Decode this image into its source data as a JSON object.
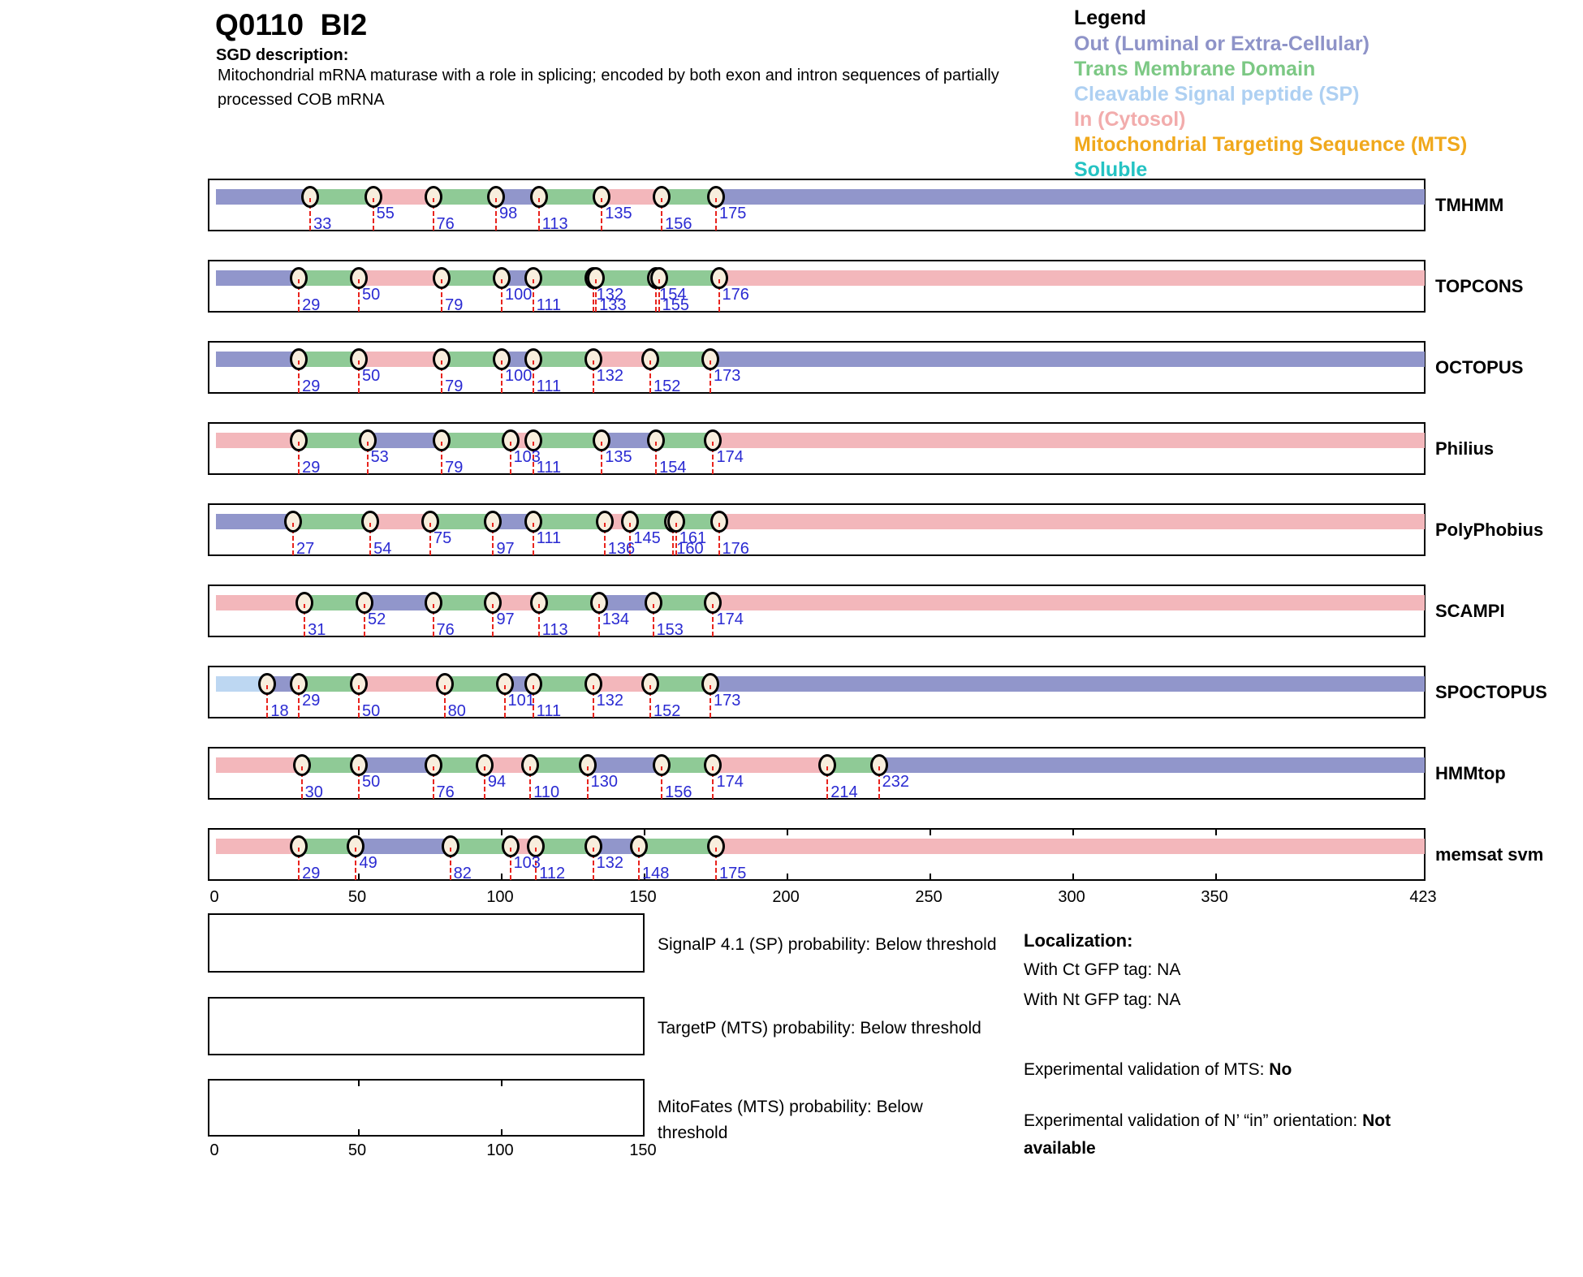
{
  "header": {
    "title": "Q0110  BI2",
    "sgd_label": "SGD description:",
    "description_lines": [
      "Mitochondrial mRNA maturase with a role in splicing; encoded by both exon and intron sequences of partially",
      "processed COB mRNA"
    ]
  },
  "legend": {
    "title": "Legend",
    "items": [
      {
        "id": "out",
        "label": "Out (Luminal or Extra-Cellular)",
        "color": "#8e93c8"
      },
      {
        "id": "tm",
        "label": "Trans Membrane Domain",
        "color": "#7cc884"
      },
      {
        "id": "sp",
        "label": "Cleavable Signal peptide (SP)",
        "color": "#aed0f2"
      },
      {
        "id": "in",
        "label": "In (Cytosol)",
        "color": "#f2acac"
      },
      {
        "id": "mts",
        "label": "Mitochondrial Targeting Sequence (MTS)",
        "color": "#f0a81c"
      },
      {
        "id": "soluble",
        "label": "Soluble",
        "color": "#25c3c3"
      }
    ]
  },
  "chart_data": {
    "type": "bar",
    "subtype": "protein-topology-tracks",
    "x_axis": {
      "min": 0,
      "max": 423,
      "ticks": [
        0,
        50,
        100,
        150,
        200,
        250,
        300,
        350,
        423
      ]
    },
    "segment_colors": {
      "out": "#9196cb",
      "tm": "#8fca96",
      "in": "#f3b7bb",
      "sp": "#bdd7f2"
    },
    "marker_colors": {
      "circle_fill": "#f8eedd",
      "circle_border": "#000000",
      "dashed_line": "#e8241e",
      "number": "#2a2ad2"
    },
    "tracks": [
      {
        "name": "TMHMM",
        "segments": [
          [
            0,
            33,
            "out"
          ],
          [
            33,
            55,
            "tm"
          ],
          [
            55,
            76,
            "in"
          ],
          [
            76,
            98,
            "tm"
          ],
          [
            98,
            113,
            "out"
          ],
          [
            113,
            135,
            "tm"
          ],
          [
            135,
            156,
            "in"
          ],
          [
            156,
            175,
            "tm"
          ],
          [
            175,
            423,
            "out"
          ]
        ],
        "boundaries": [
          [
            33,
            "low"
          ],
          [
            55,
            "high"
          ],
          [
            76,
            "low"
          ],
          [
            98,
            "high"
          ],
          [
            113,
            "low"
          ],
          [
            135,
            "high"
          ],
          [
            156,
            "low"
          ],
          [
            175,
            "high"
          ]
        ]
      },
      {
        "name": "TOPCONS",
        "segments": [
          [
            0,
            29,
            "out"
          ],
          [
            29,
            50,
            "tm"
          ],
          [
            50,
            79,
            "in"
          ],
          [
            79,
            100,
            "tm"
          ],
          [
            100,
            111,
            "out"
          ],
          [
            111,
            132,
            "tm"
          ],
          [
            132,
            133,
            "in"
          ],
          [
            133,
            154,
            "tm"
          ],
          [
            154,
            155,
            "out"
          ],
          [
            155,
            176,
            "tm"
          ],
          [
            176,
            423,
            "in"
          ]
        ],
        "boundaries": [
          [
            29,
            "low"
          ],
          [
            50,
            "high"
          ],
          [
            79,
            "low"
          ],
          [
            100,
            "high"
          ],
          [
            111,
            "low"
          ],
          [
            132,
            "high"
          ],
          [
            133,
            "low"
          ],
          [
            154,
            "high"
          ],
          [
            155,
            "low"
          ],
          [
            176,
            "high"
          ]
        ]
      },
      {
        "name": "OCTOPUS",
        "segments": [
          [
            0,
            29,
            "out"
          ],
          [
            29,
            50,
            "tm"
          ],
          [
            50,
            79,
            "in"
          ],
          [
            79,
            100,
            "tm"
          ],
          [
            100,
            111,
            "out"
          ],
          [
            111,
            132,
            "tm"
          ],
          [
            132,
            152,
            "in"
          ],
          [
            152,
            173,
            "tm"
          ],
          [
            173,
            423,
            "out"
          ]
        ],
        "boundaries": [
          [
            29,
            "low"
          ],
          [
            50,
            "high"
          ],
          [
            79,
            "low"
          ],
          [
            100,
            "high"
          ],
          [
            111,
            "low"
          ],
          [
            132,
            "high"
          ],
          [
            152,
            "low"
          ],
          [
            173,
            "high"
          ]
        ]
      },
      {
        "name": "Philius",
        "segments": [
          [
            0,
            29,
            "in"
          ],
          [
            29,
            53,
            "tm"
          ],
          [
            53,
            79,
            "out"
          ],
          [
            79,
            103,
            "tm"
          ],
          [
            103,
            111,
            "in"
          ],
          [
            111,
            135,
            "tm"
          ],
          [
            135,
            154,
            "out"
          ],
          [
            154,
            174,
            "tm"
          ],
          [
            174,
            423,
            "in"
          ]
        ],
        "boundaries": [
          [
            29,
            "low"
          ],
          [
            53,
            "high"
          ],
          [
            79,
            "low"
          ],
          [
            103,
            "high"
          ],
          [
            111,
            "low"
          ],
          [
            135,
            "high"
          ],
          [
            154,
            "low"
          ],
          [
            174,
            "high"
          ]
        ]
      },
      {
        "name": "PolyPhobius",
        "segments": [
          [
            0,
            27,
            "out"
          ],
          [
            27,
            54,
            "tm"
          ],
          [
            54,
            75,
            "in"
          ],
          [
            75,
            97,
            "tm"
          ],
          [
            97,
            111,
            "out"
          ],
          [
            111,
            136,
            "tm"
          ],
          [
            136,
            145,
            "in"
          ],
          [
            145,
            160,
            "tm"
          ],
          [
            160,
            161,
            "out"
          ],
          [
            161,
            176,
            "tm"
          ],
          [
            176,
            423,
            "in"
          ]
        ],
        "boundaries": [
          [
            27,
            "low"
          ],
          [
            54,
            "low"
          ],
          [
            75,
            "high"
          ],
          [
            97,
            "low"
          ],
          [
            111,
            "high"
          ],
          [
            136,
            "low"
          ],
          [
            145,
            "high"
          ],
          [
            160,
            "low"
          ],
          [
            161,
            "high"
          ],
          [
            176,
            "low"
          ]
        ]
      },
      {
        "name": "SCAMPI",
        "segments": [
          [
            0,
            31,
            "in"
          ],
          [
            31,
            52,
            "tm"
          ],
          [
            52,
            76,
            "out"
          ],
          [
            76,
            97,
            "tm"
          ],
          [
            97,
            113,
            "in"
          ],
          [
            113,
            134,
            "tm"
          ],
          [
            134,
            153,
            "out"
          ],
          [
            153,
            174,
            "tm"
          ],
          [
            174,
            423,
            "in"
          ]
        ],
        "boundaries": [
          [
            31,
            "low"
          ],
          [
            52,
            "high"
          ],
          [
            76,
            "low"
          ],
          [
            97,
            "high"
          ],
          [
            113,
            "low"
          ],
          [
            134,
            "high"
          ],
          [
            153,
            "low"
          ],
          [
            174,
            "high"
          ]
        ]
      },
      {
        "name": "SPOCTOPUS",
        "segments": [
          [
            0,
            18,
            "sp"
          ],
          [
            18,
            29,
            "out"
          ],
          [
            29,
            50,
            "tm"
          ],
          [
            50,
            80,
            "in"
          ],
          [
            80,
            101,
            "tm"
          ],
          [
            101,
            111,
            "out"
          ],
          [
            111,
            132,
            "tm"
          ],
          [
            132,
            152,
            "in"
          ],
          [
            152,
            173,
            "tm"
          ],
          [
            173,
            423,
            "out"
          ]
        ],
        "boundaries": [
          [
            18,
            "low"
          ],
          [
            29,
            "high"
          ],
          [
            50,
            "low"
          ],
          [
            80,
            "low"
          ],
          [
            101,
            "high"
          ],
          [
            111,
            "low"
          ],
          [
            132,
            "high"
          ],
          [
            152,
            "low"
          ],
          [
            173,
            "high"
          ]
        ]
      },
      {
        "name": "HMMtop",
        "segments": [
          [
            0,
            30,
            "in"
          ],
          [
            30,
            50,
            "tm"
          ],
          [
            50,
            76,
            "out"
          ],
          [
            76,
            94,
            "tm"
          ],
          [
            94,
            110,
            "in"
          ],
          [
            110,
            130,
            "tm"
          ],
          [
            130,
            156,
            "out"
          ],
          [
            156,
            174,
            "tm"
          ],
          [
            174,
            214,
            "in"
          ],
          [
            214,
            232,
            "tm"
          ],
          [
            232,
            423,
            "out"
          ]
        ],
        "boundaries": [
          [
            30,
            "low"
          ],
          [
            50,
            "high"
          ],
          [
            76,
            "low"
          ],
          [
            94,
            "high"
          ],
          [
            110,
            "low"
          ],
          [
            130,
            "high"
          ],
          [
            156,
            "low"
          ],
          [
            174,
            "high"
          ],
          [
            214,
            "low"
          ],
          [
            232,
            "high"
          ]
        ]
      },
      {
        "name": "memsat svm",
        "axis_frame": true,
        "segments": [
          [
            0,
            29,
            "in"
          ],
          [
            29,
            49,
            "tm"
          ],
          [
            49,
            82,
            "out"
          ],
          [
            82,
            103,
            "tm"
          ],
          [
            103,
            112,
            "in"
          ],
          [
            112,
            132,
            "tm"
          ],
          [
            132,
            148,
            "out"
          ],
          [
            148,
            175,
            "tm"
          ],
          [
            175,
            423,
            "in"
          ]
        ],
        "boundaries": [
          [
            29,
            "low"
          ],
          [
            49,
            "high"
          ],
          [
            82,
            "low"
          ],
          [
            103,
            "high"
          ],
          [
            112,
            "low"
          ],
          [
            132,
            "high"
          ],
          [
            148,
            "low"
          ],
          [
            175,
            "low"
          ]
        ]
      }
    ]
  },
  "probability": {
    "plots": [
      {
        "label_lines": [
          "SignalP 4.1 (SP) probability: Below threshold",
          ""
        ]
      },
      {
        "label_lines": [
          "TargetP (MTS) probability: Below threshold",
          ""
        ]
      },
      {
        "label_lines": [
          "MitoFates (MTS) probability: Below",
          "threshold"
        ]
      }
    ],
    "axis_ticks": [
      0,
      50,
      100,
      150
    ]
  },
  "localization": {
    "title": "Localization:",
    "gfp_lines": [
      "With Ct GFP tag: NA",
      "With Nt GFP tag: NA"
    ],
    "mts": {
      "prefix": "Experimental validation of MTS: ",
      "bold": "No"
    },
    "orientation": {
      "prefix": "Experimental validation of N’ “in” orientation: ",
      "bold_line1": "Not",
      "bold_line2": "available"
    }
  }
}
